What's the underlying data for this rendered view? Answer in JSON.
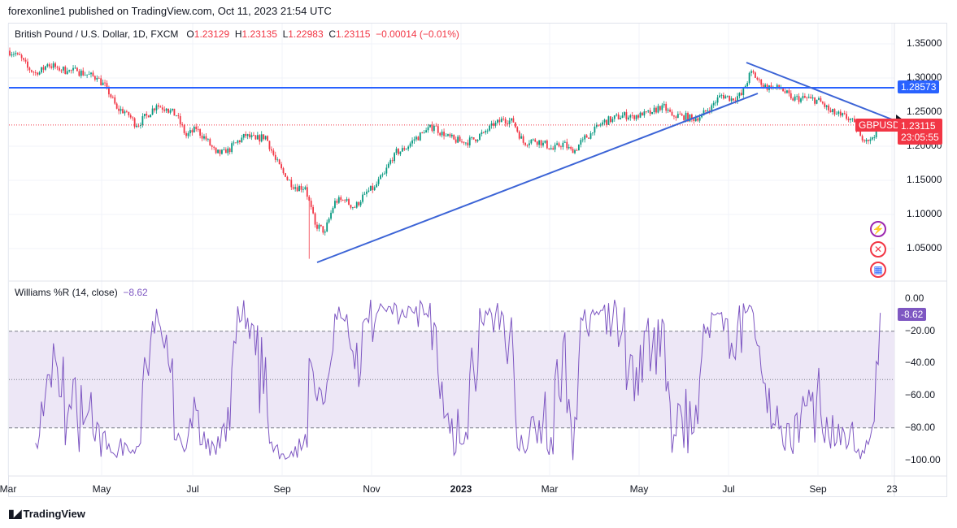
{
  "header": {
    "published": "forexonline1 published on TradingView.com, Oct 11, 2023 21:54 UTC"
  },
  "legend": {
    "symbol": "British Pound / U.S. Dollar, 1D, FXCM",
    "o_label": "O",
    "o": "1.23129",
    "h_label": "H",
    "h": "1.23135",
    "l_label": "L",
    "l": "1.22983",
    "c_label": "C",
    "c": "1.23115",
    "change": "−0.00014 (−0.01%)"
  },
  "price_tags": {
    "hline": "1.28573",
    "symbol": "GBPUSD",
    "last": "1.23115",
    "countdown": "23:05:55"
  },
  "indicator": {
    "title": "Williams %R (14, close)",
    "value": "−8.62",
    "tag": "-8.62"
  },
  "footer": {
    "brand": "TradingView"
  },
  "colors": {
    "up": "#089981",
    "down": "#f23645",
    "line": "#2962ff",
    "trend": "#3c64d6",
    "wr": "#7e57c2",
    "band": "#ede7f6"
  },
  "chart_data": [
    {
      "type": "candlestick",
      "title": "British Pound / U.S. Dollar, 1D, FXCM",
      "period": "weekly closes (approx.), Mar 2022 – Oct 2023",
      "start_price": 1.34,
      "weekly_closes": [
        1.335,
        1.315,
        1.305,
        1.32,
        1.315,
        1.31,
        1.31,
        1.305,
        1.3,
        1.285,
        1.255,
        1.25,
        1.23,
        1.245,
        1.26,
        1.255,
        1.245,
        1.215,
        1.225,
        1.21,
        1.19,
        1.19,
        1.205,
        1.215,
        1.21,
        1.215,
        1.18,
        1.155,
        1.14,
        1.14,
        1.085,
        1.075,
        1.12,
        1.12,
        1.11,
        1.13,
        1.14,
        1.16,
        1.19,
        1.195,
        1.21,
        1.22,
        1.23,
        1.215,
        1.21,
        1.205,
        1.21,
        1.22,
        1.23,
        1.24,
        1.235,
        1.205,
        1.21,
        1.205,
        1.195,
        1.205,
        1.19,
        1.21,
        1.22,
        1.235,
        1.24,
        1.245,
        1.245,
        1.245,
        1.25,
        1.26,
        1.245,
        1.245,
        1.24,
        1.245,
        1.26,
        1.275,
        1.27,
        1.275,
        1.31,
        1.29,
        1.285,
        1.285,
        1.27,
        1.27,
        1.27,
        1.265,
        1.25,
        1.245,
        1.24,
        1.215,
        1.21,
        1.2311
      ],
      "yaxis": {
        "ticks": [
          "1.35000",
          "1.30000",
          "1.25000",
          "1.20000",
          "1.15000",
          "1.10000",
          "1.05000"
        ],
        "range": [
          1.01,
          1.37
        ]
      },
      "xaxis": {
        "ticks": [
          "Mar",
          "May",
          "Jul",
          "Sep",
          "Nov",
          "2023",
          "Mar",
          "May",
          "Jul",
          "Sep",
          "23"
        ]
      },
      "horizontal_line": 1.28573,
      "trendlines": [
        {
          "from": [
            "2022-09-26",
            1.03
          ],
          "to": [
            "2023-07-20",
            1.28
          ]
        },
        {
          "from": [
            "2023-07-13",
            1.32
          ],
          "to": [
            "2023-10-13",
            1.235
          ]
        }
      ]
    },
    {
      "type": "line",
      "title": "Williams %R (14, close)",
      "last_value": -8.62,
      "levels": [
        -20,
        -50,
        -80
      ],
      "yaxis": {
        "ticks": [
          "0.00",
          "−20.00",
          "−40.00",
          "−60.00",
          "−80.00",
          "−100.00"
        ],
        "range": [
          0,
          -100
        ]
      }
    }
  ]
}
